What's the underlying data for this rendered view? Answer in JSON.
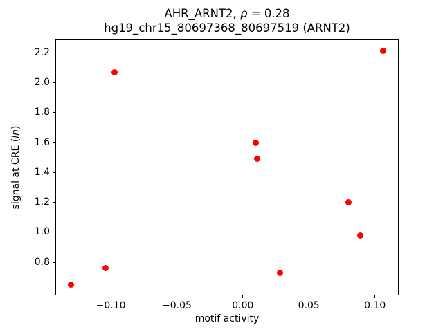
{
  "labels": {
    "title_prefix": "AHR_ARNT2, ",
    "title_rho": "ρ",
    "title_rho_suffix": " = 0.28",
    "title_line2": "hg19_chr15_80697368_80697519 (ARNT2)",
    "xlabel": "motif activity",
    "ylabel_prefix": "signal at CRE (",
    "ylabel_italic": "ln",
    "ylabel_suffix": ")"
  },
  "chart_data": {
    "type": "scatter",
    "title": "AHR_ARNT2, ρ = 0.28",
    "subtitle": "hg19_chr15_80697368_80697519 (ARNT2)",
    "xlabel": "motif activity",
    "ylabel": "signal at CRE (ln)",
    "marker_color": "#ff0000",
    "marker_shape": "circle",
    "grid": false,
    "legend": null,
    "points": [
      {
        "x": -0.13,
        "y": 0.65
      },
      {
        "x": -0.104,
        "y": 0.76
      },
      {
        "x": -0.097,
        "y": 2.07
      },
      {
        "x": 0.01,
        "y": 1.6
      },
      {
        "x": 0.011,
        "y": 1.49
      },
      {
        "x": 0.028,
        "y": 0.73
      },
      {
        "x": 0.08,
        "y": 1.2
      },
      {
        "x": 0.089,
        "y": 0.98
      },
      {
        "x": 0.106,
        "y": 2.21
      }
    ],
    "xlim": [
      -0.142,
      0.118
    ],
    "ylim": [
      0.579,
      2.285
    ],
    "x_ticks": {
      "values": [
        -0.1,
        -0.05,
        0.0,
        0.05,
        0.1
      ],
      "labels": [
        "−0.10",
        "−0.05",
        "0.00",
        "0.05",
        "0.10"
      ]
    },
    "y_ticks": {
      "values": [
        0.8,
        1.0,
        1.2,
        1.4,
        1.6,
        1.8,
        2.0,
        2.2
      ],
      "labels": [
        "0.8",
        "1.0",
        "1.2",
        "1.4",
        "1.6",
        "1.8",
        "2.0",
        "2.2"
      ]
    }
  },
  "colors": {
    "marker": "#ff0000",
    "axis": "#000000",
    "text": "#000000",
    "background": "#ffffff"
  }
}
